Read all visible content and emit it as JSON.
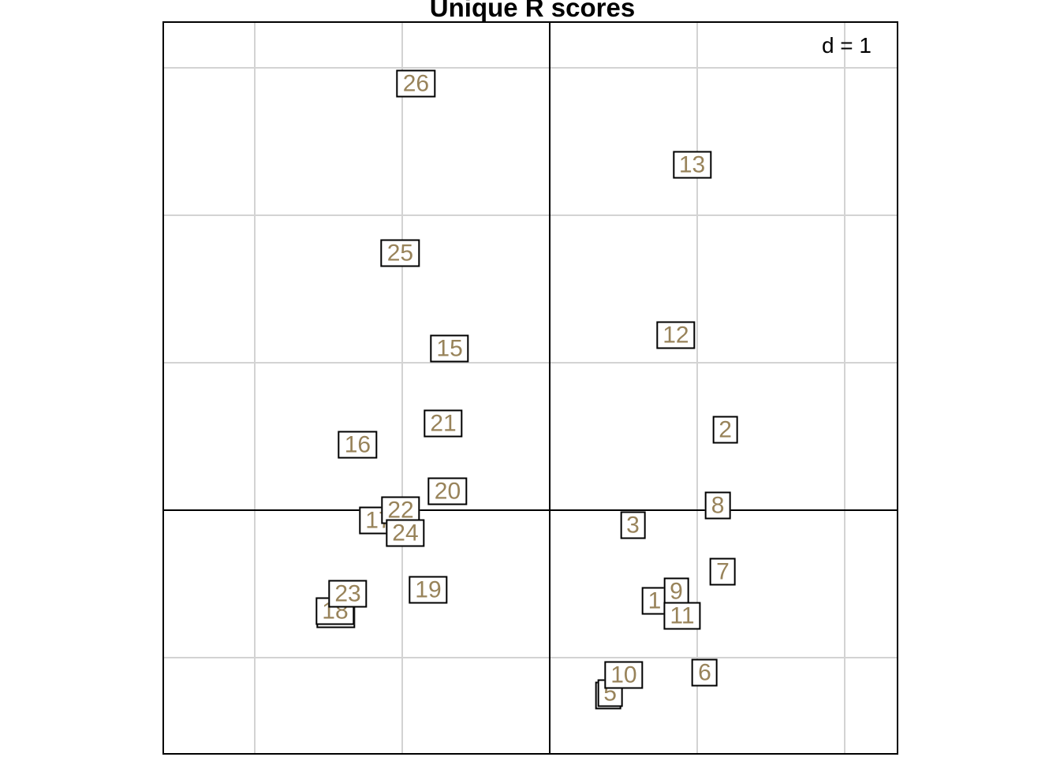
{
  "title": "Unique R scores",
  "scale_label": "d = 1",
  "colors": {
    "background": "#FFFFFF",
    "frame": "#000000",
    "grid": "#D3D3D3",
    "axis": "#000000",
    "box_border": "#000000",
    "box_fill": "#FFFFFF",
    "label_text": "#98835A",
    "title_text": "#000000"
  },
  "chart_data": {
    "type": "scatter",
    "title": "Unique R scores",
    "subtitle": "",
    "xlabel": "",
    "ylabel": "",
    "grid": "on",
    "grid_cell_size": 1,
    "scale_annotation": "d = 1",
    "xlim": [
      -2.62,
      2.36
    ],
    "ylim": [
      -1.66,
      3.31
    ],
    "x_gridlines": [
      -2,
      -1,
      0,
      1,
      2
    ],
    "y_gridlines": [
      -1,
      0,
      1,
      2,
      3
    ],
    "axis_lines_at_zero": true,
    "point_style": "boxed-text-label",
    "draw_order": "ascending-label-number-later-on-top",
    "points": [
      {
        "label": "1",
        "x": 0.714,
        "y": -0.62
      },
      {
        "label": "2",
        "x": 1.193,
        "y": 0.543
      },
      {
        "label": "3",
        "x": 0.567,
        "y": -0.102
      },
      {
        "label": "4",
        "x": 0.401,
        "y": -1.257
      },
      {
        "label": "5",
        "x": 0.412,
        "y": -1.241
      },
      {
        "label": "6",
        "x": 1.053,
        "y": -1.102
      },
      {
        "label": "7",
        "x": 1.176,
        "y": -0.42
      },
      {
        "label": "8",
        "x": 1.142,
        "y": 0.032
      },
      {
        "label": "9",
        "x": 0.861,
        "y": -0.556
      },
      {
        "label": "10",
        "x": 0.505,
        "y": -1.118
      },
      {
        "label": "11",
        "x": 0.901,
        "y": -0.717
      },
      {
        "label": "12",
        "x": 0.858,
        "y": 1.182
      },
      {
        "label": "13",
        "x": 0.968,
        "y": 2.337
      },
      {
        "label": "14",
        "x": -1.447,
        "y": -0.711
      },
      {
        "label": "15",
        "x": -0.676,
        "y": 1.091
      },
      {
        "label": "16",
        "x": -1.3,
        "y": 0.441
      },
      {
        "label": "17",
        "x": -1.158,
        "y": -0.07
      },
      {
        "label": "18",
        "x": -1.452,
        "y": -0.687
      },
      {
        "label": "19",
        "x": -0.821,
        "y": -0.545
      },
      {
        "label": "20",
        "x": -0.69,
        "y": 0.128
      },
      {
        "label": "21",
        "x": -0.719,
        "y": 0.583
      },
      {
        "label": "22",
        "x": -1.008,
        "y": -0.005
      },
      {
        "label": "23",
        "x": -1.366,
        "y": -0.567
      },
      {
        "label": "24",
        "x": -0.976,
        "y": -0.16
      },
      {
        "label": "25",
        "x": -1.011,
        "y": 1.738
      },
      {
        "label": "26",
        "x": -0.904,
        "y": 2.888
      }
    ]
  }
}
